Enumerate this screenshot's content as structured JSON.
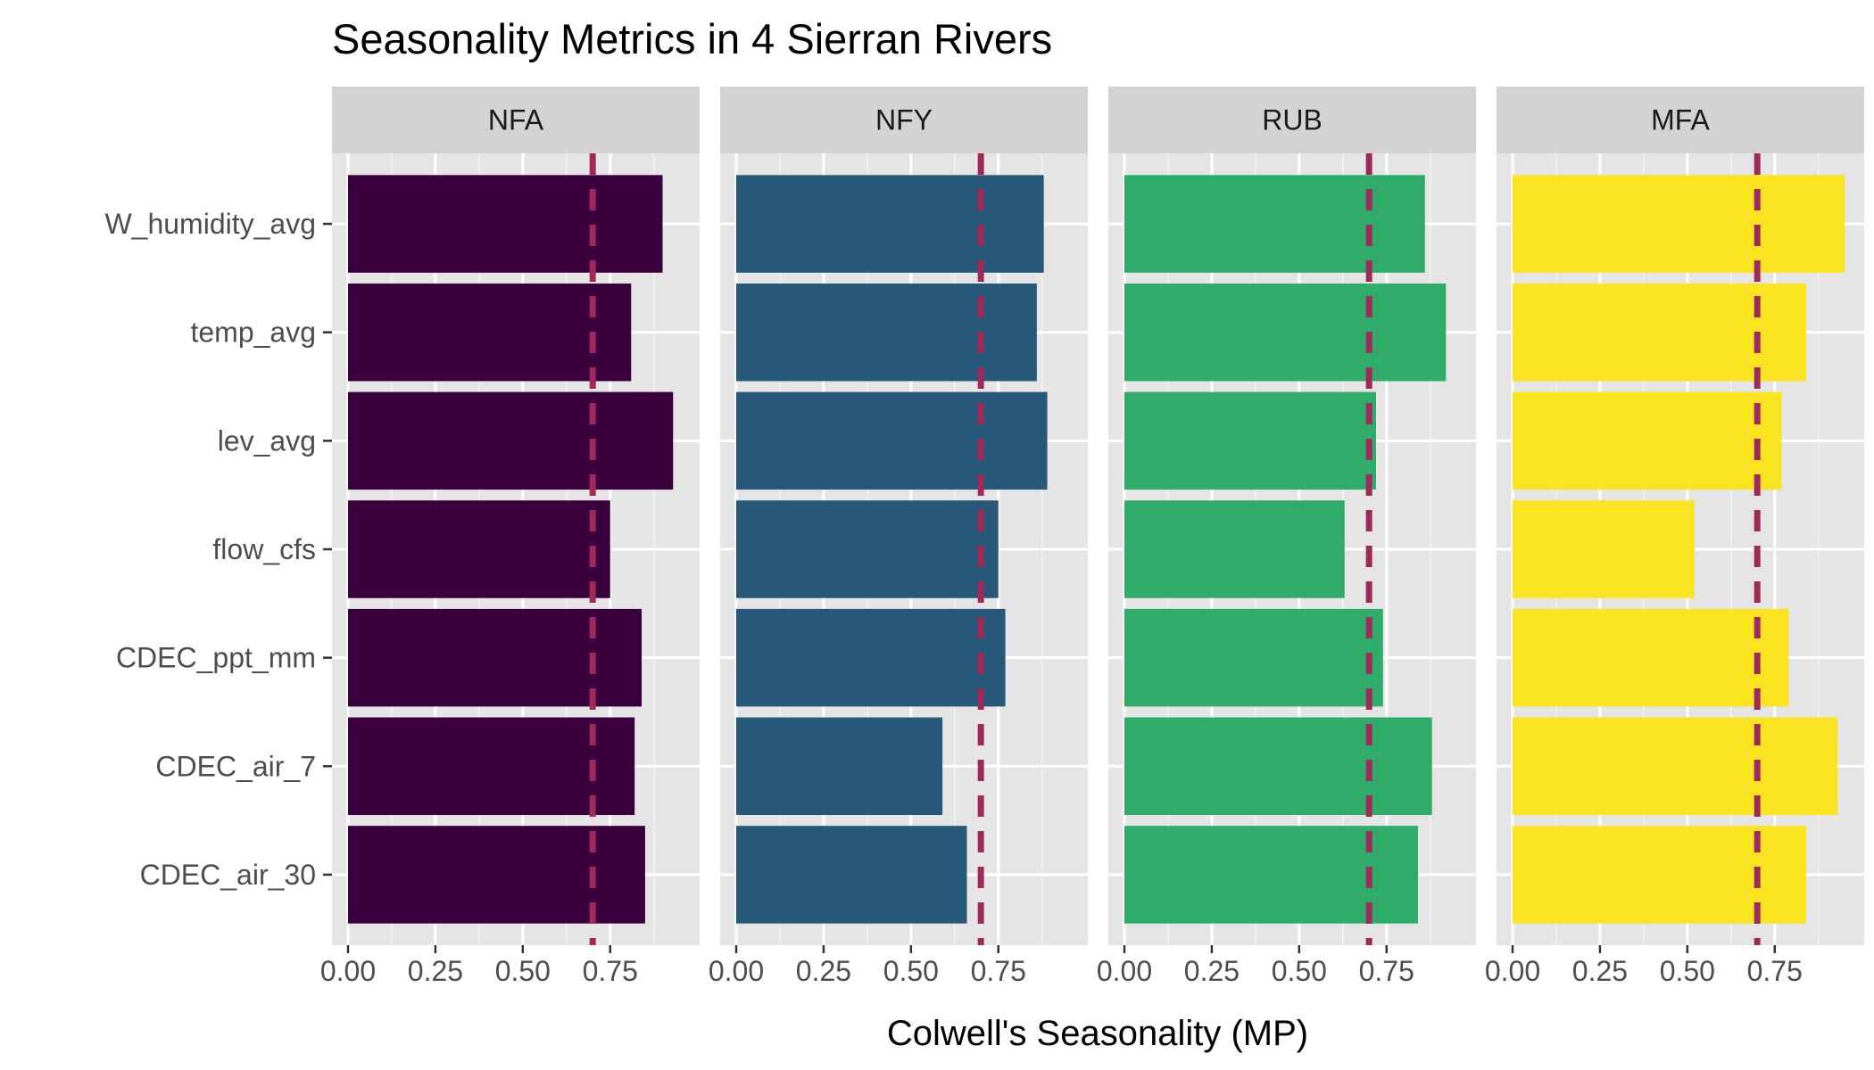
{
  "chart_data": {
    "type": "bar",
    "orientation": "horizontal",
    "title": "Seasonality Metrics in 4 Sierran Rivers",
    "xlabel": "Colwell's Seasonality (MP)",
    "ylabel": "",
    "xlim": [
      0,
      0.96
    ],
    "x_ticks": [
      "0.00",
      "0.25",
      "0.50",
      "0.75"
    ],
    "x_tick_values": [
      0,
      0.25,
      0.5,
      0.75
    ],
    "categories": [
      "W_humidity_avg",
      "temp_avg",
      "lev_avg",
      "flow_cfs",
      "CDEC_ppt_mm",
      "CDEC_air_7",
      "CDEC_air_30"
    ],
    "reference_line": {
      "value": 0.7,
      "style": "dashed",
      "color": "#9E2A5A"
    },
    "grid": true,
    "legend": "none",
    "panel_background": "#E5E5E5",
    "strip_background": "#D3D3D3",
    "facets": [
      {
        "label": "NFA",
        "color": "#3A003E",
        "values": [
          0.9,
          0.81,
          0.93,
          0.75,
          0.84,
          0.82,
          0.85
        ]
      },
      {
        "label": "NFY",
        "color": "#275779",
        "values": [
          0.88,
          0.86,
          0.89,
          0.75,
          0.77,
          0.59,
          0.66
        ]
      },
      {
        "label": "RUB",
        "color": "#30AC6A",
        "values": [
          0.86,
          0.92,
          0.72,
          0.63,
          0.74,
          0.88,
          0.84
        ]
      },
      {
        "label": "MFA",
        "color": "#FAE421",
        "values": [
          0.95,
          0.84,
          0.77,
          0.52,
          0.79,
          0.93,
          0.84
        ]
      }
    ]
  }
}
